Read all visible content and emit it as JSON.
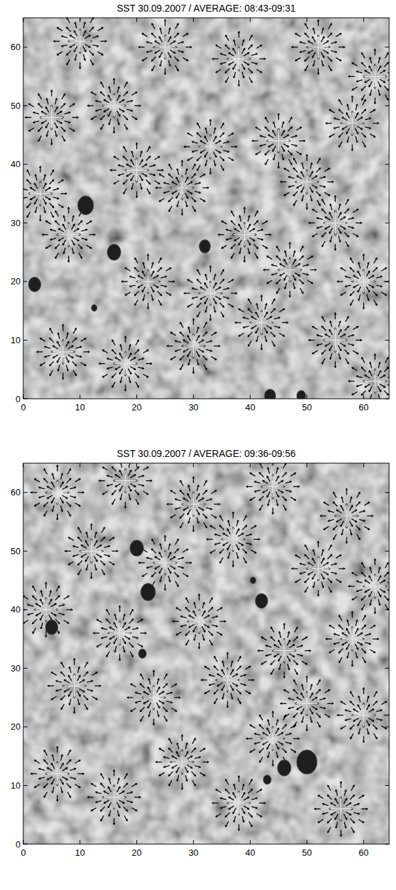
{
  "chart_data": [
    {
      "type": "vector_field",
      "title": "SST 30.09.2007 / AVERAGE: 08:43-09:31",
      "xlim": [
        0,
        64.5
      ],
      "ylim": [
        0,
        65
      ],
      "xticks": [
        0,
        10,
        20,
        30,
        40,
        50,
        60
      ],
      "yticks": [
        0,
        10,
        20,
        30,
        40,
        50,
        60
      ],
      "sources": {
        "x": [
          10,
          25,
          38,
          52,
          62,
          5,
          16,
          33,
          45,
          58,
          20,
          28,
          50,
          8,
          39,
          55,
          22,
          33,
          47,
          60,
          7,
          18,
          30,
          42,
          55,
          62,
          3
        ],
        "y": [
          61,
          60,
          58,
          60,
          55,
          48,
          50,
          43,
          44,
          47,
          39,
          36,
          37,
          28,
          28,
          30,
          20,
          18,
          22,
          20,
          8,
          6,
          9,
          13,
          10,
          3,
          35
        ]
      },
      "pores": {
        "x": [
          11,
          16,
          2,
          32,
          43.5,
          49,
          12.5
        ],
        "y": [
          33,
          25,
          19.5,
          26,
          0.5,
          0.5,
          15.5
        ],
        "size": [
          1.4,
          1.2,
          1.1,
          1.0,
          1.0,
          0.8,
          0.5
        ]
      }
    },
    {
      "type": "vector_field",
      "title": "SST 30.09.2007 / AVERAGE: 09:36-09:56",
      "xlim": [
        0,
        64.5
      ],
      "ylim": [
        0,
        65
      ],
      "xticks": [
        0,
        10,
        20,
        30,
        40,
        50,
        60
      ],
      "yticks": [
        0,
        10,
        20,
        30,
        40,
        50,
        60
      ],
      "sources": {
        "x": [
          6,
          18,
          30,
          44,
          57,
          12,
          25,
          37,
          52,
          62,
          4,
          17,
          31,
          46,
          58,
          9,
          23,
          36,
          50,
          60,
          6,
          16,
          28,
          38,
          56,
          44
        ],
        "y": [
          60,
          62,
          58,
          61,
          56,
          50,
          48,
          52,
          47,
          44,
          40,
          36,
          38,
          33,
          35,
          27,
          25,
          28,
          24,
          22,
          12,
          8,
          14,
          7,
          6,
          18
        ]
      },
      "pores": {
        "x": [
          20,
          22,
          5,
          21,
          42,
          50,
          46,
          43,
          40.5
        ],
        "y": [
          50.5,
          43,
          37,
          32.5,
          41.5,
          14,
          13,
          11,
          45
        ],
        "size": [
          1.2,
          1.3,
          1.1,
          0.7,
          1.1,
          1.8,
          1.2,
          0.7,
          0.5
        ]
      }
    }
  ]
}
